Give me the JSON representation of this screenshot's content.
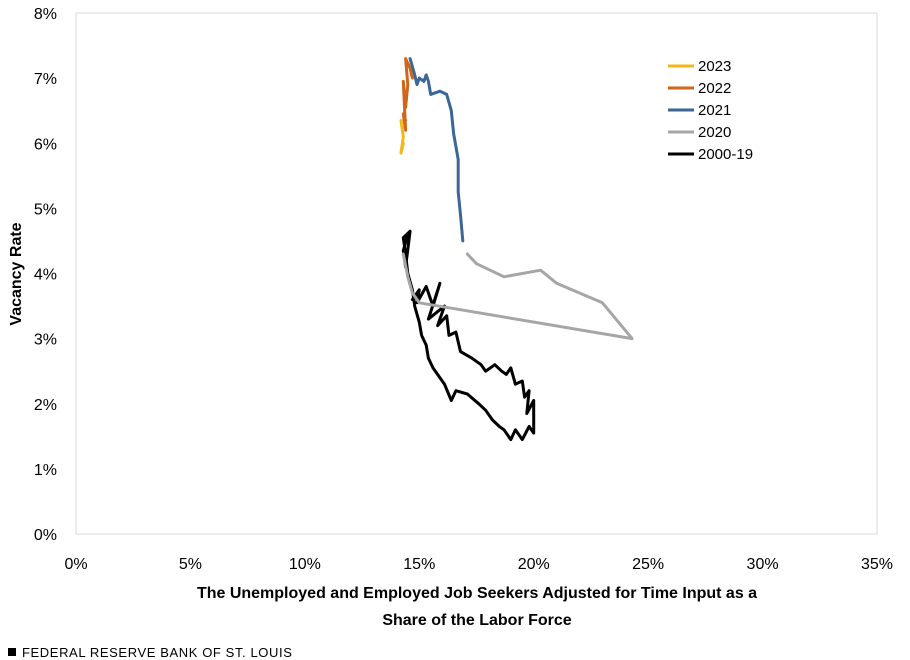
{
  "chart_data": {
    "type": "line",
    "xlabel_lines": [
      "The Unemployed and Employed Job Seekers Adjusted for Time Input as a",
      "Share of the Labor Force"
    ],
    "ylabel": "Vacancy Rate",
    "xlim": [
      0,
      35
    ],
    "ylim": [
      0,
      8
    ],
    "x_ticks": [
      0,
      5,
      10,
      15,
      20,
      25,
      30,
      35
    ],
    "x_tick_labels": [
      "0%",
      "5%",
      "10%",
      "15%",
      "20%",
      "25%",
      "30%",
      "35%"
    ],
    "y_ticks": [
      0,
      1,
      2,
      3,
      4,
      5,
      6,
      7,
      8
    ],
    "y_tick_labels": [
      "0%",
      "1%",
      "2%",
      "3%",
      "4%",
      "5%",
      "6%",
      "7%",
      "8%"
    ],
    "grid": false,
    "legend_position": "top-right",
    "series": [
      {
        "name": "2000-19",
        "color": "#000000",
        "points": [
          [
            14.7,
            3.6
          ],
          [
            15.0,
            3.75
          ],
          [
            14.9,
            3.55
          ],
          [
            15.3,
            3.8
          ],
          [
            15.6,
            3.5
          ],
          [
            15.9,
            3.85
          ],
          [
            15.4,
            3.3
          ],
          [
            16.1,
            3.5
          ],
          [
            15.8,
            3.2
          ],
          [
            16.2,
            3.35
          ],
          [
            16.3,
            3.05
          ],
          [
            16.6,
            3.1
          ],
          [
            16.8,
            2.8
          ],
          [
            17.3,
            2.7
          ],
          [
            17.7,
            2.6
          ],
          [
            17.9,
            2.5
          ],
          [
            18.3,
            2.6
          ],
          [
            18.6,
            2.5
          ],
          [
            18.8,
            2.45
          ],
          [
            19.0,
            2.55
          ],
          [
            19.2,
            2.3
          ],
          [
            19.5,
            2.35
          ],
          [
            19.6,
            2.1
          ],
          [
            19.8,
            2.2
          ],
          [
            19.7,
            1.85
          ],
          [
            20.0,
            2.05
          ],
          [
            20.0,
            1.55
          ],
          [
            19.8,
            1.65
          ],
          [
            19.5,
            1.45
          ],
          [
            19.2,
            1.6
          ],
          [
            19.0,
            1.45
          ],
          [
            18.7,
            1.6
          ],
          [
            18.5,
            1.65
          ],
          [
            18.2,
            1.75
          ],
          [
            17.9,
            1.9
          ],
          [
            17.6,
            2.0
          ],
          [
            17.1,
            2.15
          ],
          [
            16.6,
            2.2
          ],
          [
            16.4,
            2.05
          ],
          [
            16.1,
            2.3
          ],
          [
            15.9,
            2.4
          ],
          [
            15.6,
            2.55
          ],
          [
            15.4,
            2.7
          ],
          [
            15.3,
            2.9
          ],
          [
            15.1,
            3.05
          ],
          [
            15.0,
            3.25
          ],
          [
            14.8,
            3.5
          ],
          [
            14.7,
            3.75
          ],
          [
            14.5,
            4.0
          ],
          [
            14.4,
            4.3
          ],
          [
            14.3,
            4.55
          ],
          [
            14.6,
            4.65
          ],
          [
            14.4,
            4.1
          ],
          [
            14.3,
            4.35
          ],
          [
            14.5,
            4.6
          ]
        ]
      },
      {
        "name": "2020",
        "color": "#a6a6a6",
        "points": [
          [
            14.3,
            4.3
          ],
          [
            14.5,
            3.95
          ],
          [
            14.7,
            3.7
          ],
          [
            15.0,
            3.55
          ],
          [
            24.3,
            3.0
          ],
          [
            23.0,
            3.55
          ],
          [
            21.0,
            3.85
          ],
          [
            20.3,
            4.05
          ],
          [
            18.7,
            3.95
          ],
          [
            17.5,
            4.15
          ],
          [
            17.1,
            4.3
          ]
        ]
      },
      {
        "name": "2021",
        "color": "#3b6695",
        "points": [
          [
            16.9,
            4.5
          ],
          [
            16.8,
            4.9
          ],
          [
            16.7,
            5.25
          ],
          [
            16.7,
            5.75
          ],
          [
            16.5,
            6.15
          ],
          [
            16.4,
            6.5
          ],
          [
            16.2,
            6.75
          ],
          [
            15.9,
            6.8
          ],
          [
            15.5,
            6.75
          ],
          [
            15.4,
            6.95
          ],
          [
            15.3,
            7.05
          ],
          [
            15.2,
            6.95
          ],
          [
            15.0,
            7.0
          ],
          [
            14.9,
            6.9
          ],
          [
            14.8,
            7.05
          ],
          [
            14.6,
            7.3
          ]
        ]
      },
      {
        "name": "2022",
        "color": "#d0661a",
        "points": [
          [
            14.7,
            7.0
          ],
          [
            14.6,
            7.15
          ],
          [
            14.4,
            7.3
          ],
          [
            14.5,
            6.9
          ],
          [
            14.4,
            6.55
          ],
          [
            14.3,
            6.95
          ],
          [
            14.4,
            6.2
          ],
          [
            14.3,
            6.45
          ],
          [
            14.4,
            6.35
          ]
        ]
      },
      {
        "name": "2023",
        "color": "#f3b71a",
        "points": [
          [
            14.2,
            6.35
          ],
          [
            14.3,
            6.1
          ],
          [
            14.2,
            5.85
          ],
          [
            14.3,
            6.0
          ]
        ]
      }
    ],
    "legend_order": [
      "2023",
      "2022",
      "2021",
      "2020",
      "2000-19"
    ]
  },
  "footer": {
    "source": "FEDERAL RESERVE BANK OF ST. LOUIS"
  }
}
